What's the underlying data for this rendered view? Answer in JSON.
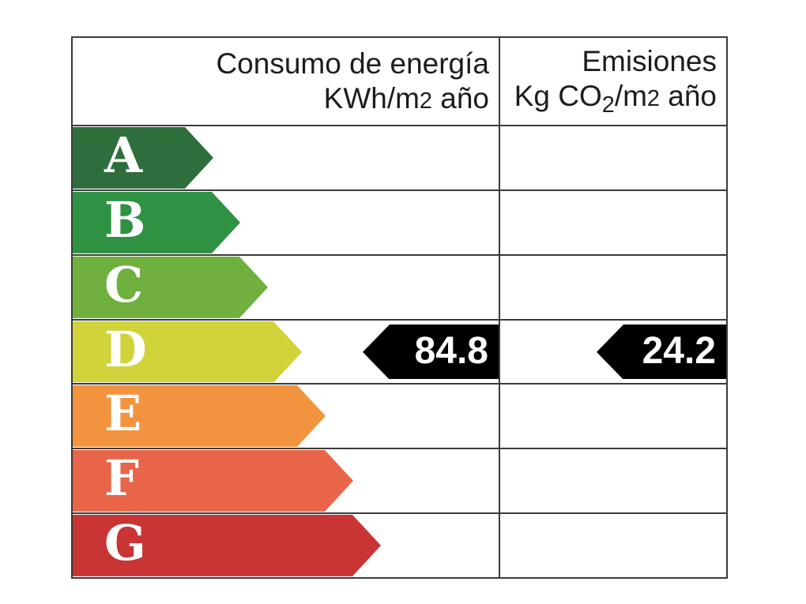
{
  "meta": {
    "background_color": "#ffffff",
    "grid_color": "#3b3b3b",
    "header_text_color": "#1d1d1d",
    "letter_text_color": "#ffffff"
  },
  "header": {
    "consumo": {
      "line1": "Consumo de energía",
      "unit_pre": "KWh/m",
      "unit_exp": "2",
      "unit_post": " año"
    },
    "emisiones": {
      "line1": "Emisiones",
      "unit_pre": "Kg CO",
      "unit_sub": "2",
      "unit_mid": "/m",
      "unit_exp": "2",
      "unit_post": " año"
    }
  },
  "ratings": [
    {
      "letter": "A",
      "color": "#2e6e3c",
      "arrow_width": 178
    },
    {
      "letter": "B",
      "color": "#2f9243",
      "arrow_width": 212
    },
    {
      "letter": "C",
      "color": "#6fb03f",
      "arrow_width": 247
    },
    {
      "letter": "D",
      "color": "#d0d339",
      "arrow_width": 290
    },
    {
      "letter": "E",
      "color": "#f2943f",
      "arrow_width": 320
    },
    {
      "letter": "F",
      "color": "#e9654a",
      "arrow_width": 355
    },
    {
      "letter": "G",
      "color": "#c93434",
      "arrow_width": 390
    }
  ],
  "values": [
    {
      "text": "84.8",
      "rating": "D",
      "column": "consumo",
      "arrow_color": "#000000",
      "text_color": "#ffffff",
      "width": 172
    },
    {
      "text": "24.2",
      "rating": "D",
      "column": "emisiones",
      "arrow_color": "#000000",
      "text_color": "#ffffff",
      "width": 164
    }
  ],
  "chart_data": {
    "type": "bar",
    "title": "",
    "categories": [
      "A",
      "B",
      "C",
      "D",
      "E",
      "F",
      "G"
    ],
    "category_colors": [
      "#2e6e3c",
      "#2f9243",
      "#6fb03f",
      "#d0d339",
      "#f2943f",
      "#e9654a",
      "#c93434"
    ],
    "bar_relative_lengths": [
      178,
      212,
      247,
      290,
      320,
      355,
      390
    ],
    "series": [
      {
        "name": "Consumo de energía KWh/m2 año",
        "rating": "D",
        "value": 84.8
      },
      {
        "name": "Emisiones Kg CO2/m2 año",
        "rating": "D",
        "value": 24.2
      }
    ],
    "layout": "energy-efficiency certificate scale, letter arrows left column, black value arrows at rated row",
    "legend_position": "none",
    "grid": "row separators across both columns"
  }
}
